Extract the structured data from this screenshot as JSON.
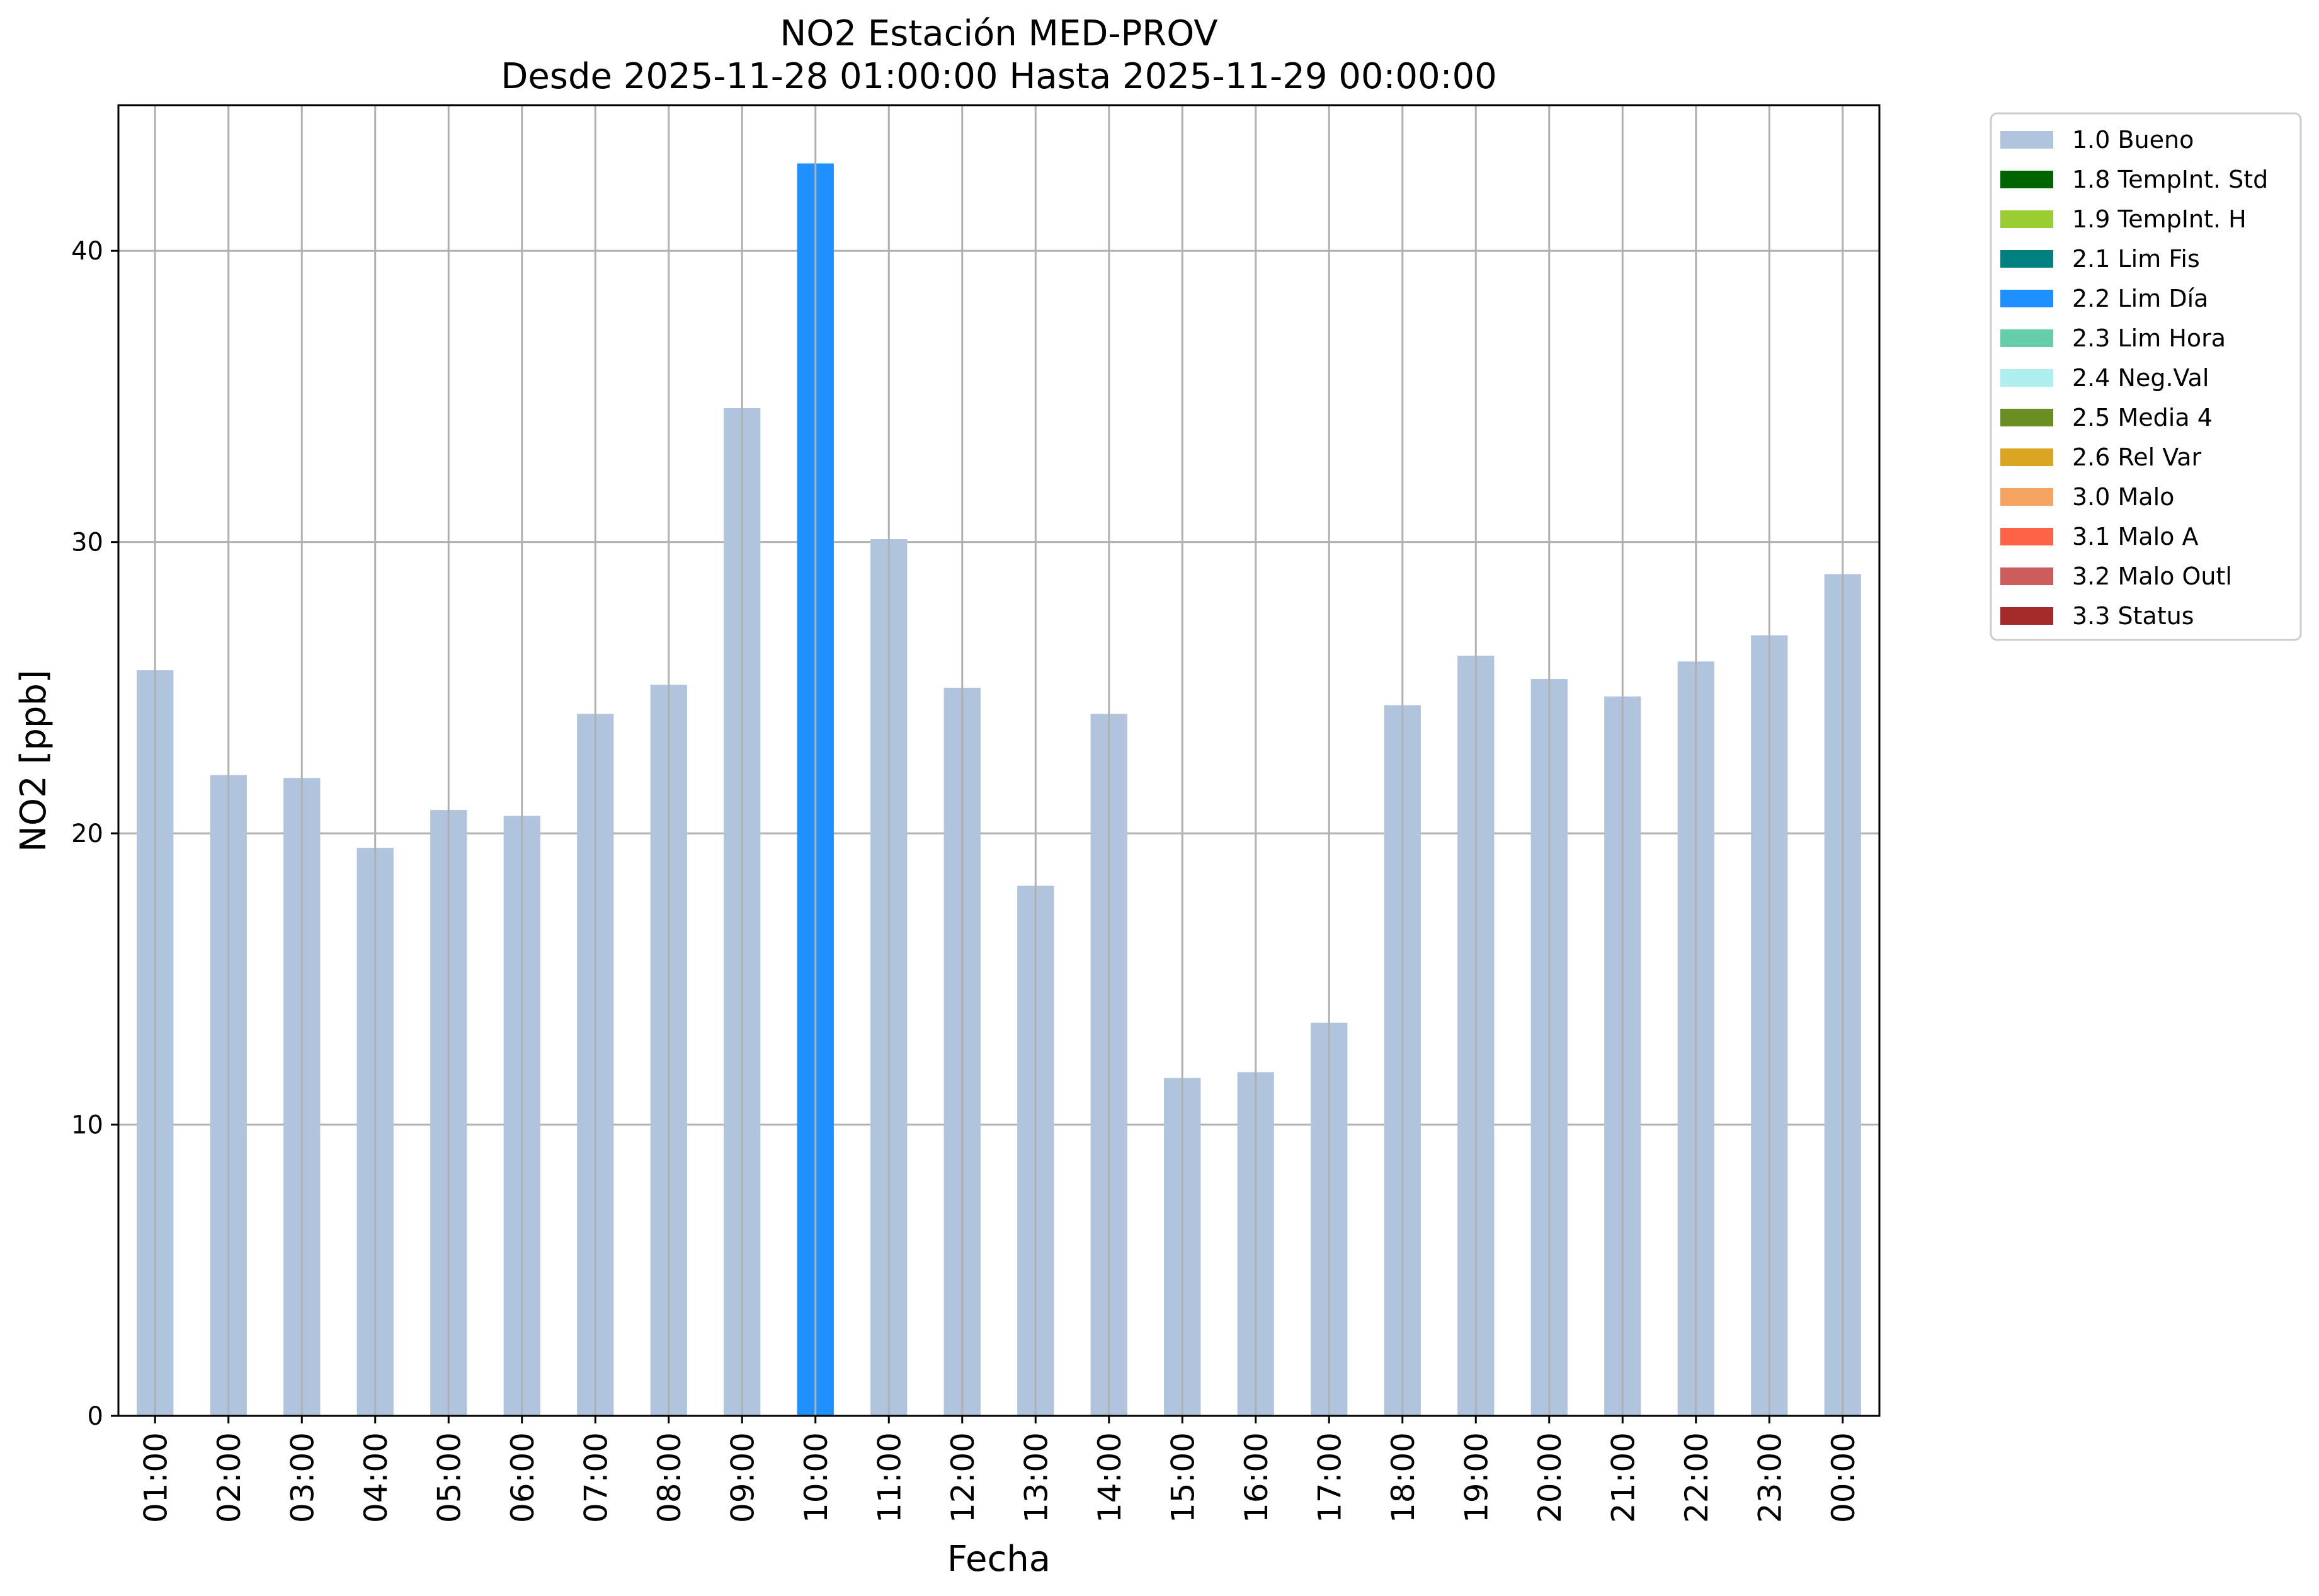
{
  "chart_data": {
    "type": "bar",
    "title": "NO2 Estación MED-PROV",
    "subtitle": "Desde 2025-11-28 01:00:00 Hasta 2025-11-29 00:00:00",
    "xlabel": "Fecha",
    "ylabel": "NO2 [ppb]",
    "ylim": [
      0,
      45
    ],
    "yticks": [
      0,
      10,
      20,
      30,
      40
    ],
    "grid": true,
    "legend_position": "outside-right",
    "categories": [
      "01:00",
      "02:00",
      "03:00",
      "04:00",
      "05:00",
      "06:00",
      "07:00",
      "08:00",
      "09:00",
      "10:00",
      "11:00",
      "12:00",
      "13:00",
      "14:00",
      "15:00",
      "16:00",
      "17:00",
      "18:00",
      "19:00",
      "20:00",
      "21:00",
      "22:00",
      "23:00",
      "00:00"
    ],
    "values": [
      25.6,
      22.0,
      21.9,
      19.5,
      20.8,
      20.6,
      24.1,
      25.1,
      34.6,
      43.0,
      30.1,
      25.0,
      18.2,
      24.1,
      11.6,
      11.8,
      13.5,
      24.4,
      26.1,
      25.3,
      24.7,
      25.9,
      26.8,
      28.9
    ],
    "flags": [
      "1.0",
      "1.0",
      "1.0",
      "1.0",
      "1.0",
      "1.0",
      "1.0",
      "1.0",
      "1.0",
      "2.2",
      "1.0",
      "1.0",
      "1.0",
      "1.0",
      "1.0",
      "1.0",
      "1.0",
      "1.0",
      "1.0",
      "1.0",
      "1.0",
      "1.0",
      "1.0",
      "1.0"
    ],
    "legend": [
      {
        "code": "1.0",
        "label": "1.0 Bueno",
        "color": "#b0c4de"
      },
      {
        "code": "1.8",
        "label": "1.8 TempInt. Std",
        "color": "#006400"
      },
      {
        "code": "1.9",
        "label": "1.9 TempInt. H",
        "color": "#9acd32"
      },
      {
        "code": "2.1",
        "label": "2.1 Lim Fis",
        "color": "#008080"
      },
      {
        "code": "2.2",
        "label": "2.2 Lim Día",
        "color": "#1e90ff"
      },
      {
        "code": "2.3",
        "label": "2.3 Lim Hora",
        "color": "#66cdaa"
      },
      {
        "code": "2.4",
        "label": "2.4 Neg.Val",
        "color": "#afeeee"
      },
      {
        "code": "2.5",
        "label": "2.5 Media 4",
        "color": "#6b8e23"
      },
      {
        "code": "2.6",
        "label": "2.6 Rel Var",
        "color": "#daa520"
      },
      {
        "code": "3.0",
        "label": "3.0 Malo",
        "color": "#f4a460"
      },
      {
        "code": "3.1",
        "label": "3.1 Malo A",
        "color": "#ff6347"
      },
      {
        "code": "3.2",
        "label": "3.2 Malo Outl",
        "color": "#cd5c5c"
      },
      {
        "code": "3.3",
        "label": "3.3 Status",
        "color": "#a52a2a"
      }
    ]
  }
}
